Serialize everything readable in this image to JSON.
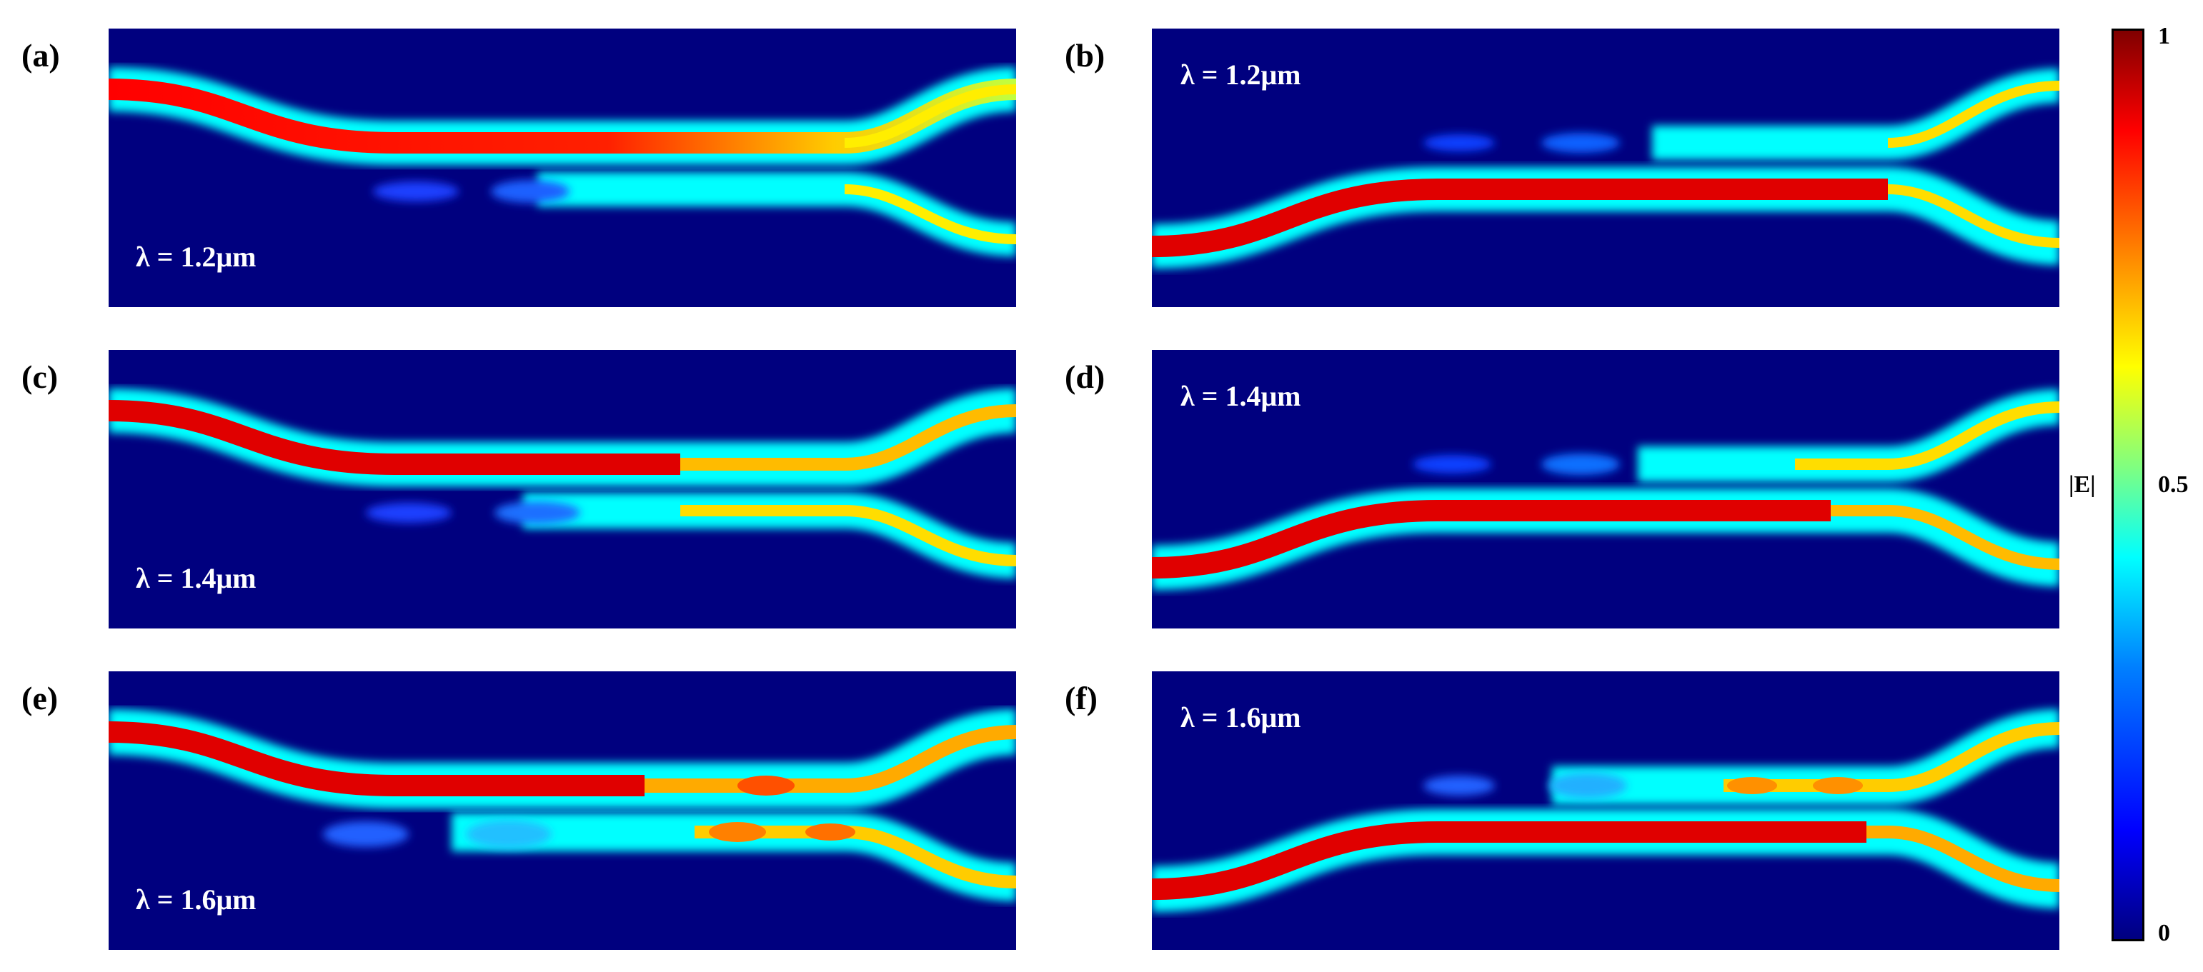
{
  "panels": [
    {
      "id": "a",
      "label": "(a)",
      "lambda": "λ = 1.2μm",
      "lambda_position": "bottom-left",
      "input_port": "upper"
    },
    {
      "id": "b",
      "label": "(b)",
      "lambda": "λ = 1.2μm",
      "lambda_position": "top-left",
      "input_port": "lower"
    },
    {
      "id": "c",
      "label": "(c)",
      "lambda": "λ = 1.4μm",
      "lambda_position": "bottom-left",
      "input_port": "upper"
    },
    {
      "id": "d",
      "label": "(d)",
      "lambda": "λ = 1.4μm",
      "lambda_position": "top-left",
      "input_port": "lower"
    },
    {
      "id": "e",
      "label": "(e)",
      "lambda": "λ = 1.6μm",
      "lambda_position": "bottom-left",
      "input_port": "upper"
    },
    {
      "id": "f",
      "label": "(f)",
      "lambda": "λ = 1.6μm",
      "lambda_position": "top-left",
      "input_port": "lower"
    }
  ],
  "colorbar": {
    "label": "|E|",
    "ticks": [
      "1",
      "0.5",
      "0"
    ],
    "range": [
      0,
      1
    ],
    "colormap": "jet",
    "colors": {
      "min": "#00007f",
      "mid": "#80ff80",
      "max": "#800000"
    }
  }
}
